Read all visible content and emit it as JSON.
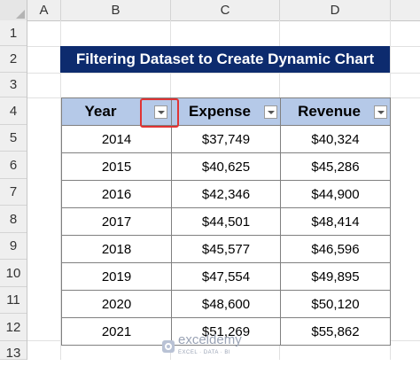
{
  "column_headers": [
    "A",
    "B",
    "C",
    "D"
  ],
  "row_headers": [
    "1",
    "2",
    "3",
    "4",
    "5",
    "6",
    "7",
    "8",
    "9",
    "10",
    "11",
    "12",
    "13"
  ],
  "title": "Filtering Dataset to Create Dynamic Chart",
  "table": {
    "headers": [
      "Year",
      "Expense",
      "Revenue"
    ],
    "rows": [
      [
        "2014",
        "$37,749",
        "$40,324"
      ],
      [
        "2015",
        "$40,625",
        "$45,286"
      ],
      [
        "2016",
        "$42,346",
        "$44,900"
      ],
      [
        "2017",
        "$44,501",
        "$48,414"
      ],
      [
        "2018",
        "$45,577",
        "$46,596"
      ],
      [
        "2019",
        "$47,554",
        "$49,895"
      ],
      [
        "2020",
        "$48,600",
        "$50,120"
      ],
      [
        "2021",
        "$51,269",
        "$55,862"
      ]
    ]
  },
  "watermark": {
    "name": "exceldemy",
    "tagline": "EXCEL · DATA · BI"
  },
  "icons": {
    "filter_dropdown": "chevron-down-icon",
    "corner": "select-all-icon",
    "logo": "exceldemy-logo-icon"
  },
  "colors": {
    "title_bg": "#0d2b6e",
    "header_bg": "#b5c9e8",
    "highlight": "#e03434"
  }
}
